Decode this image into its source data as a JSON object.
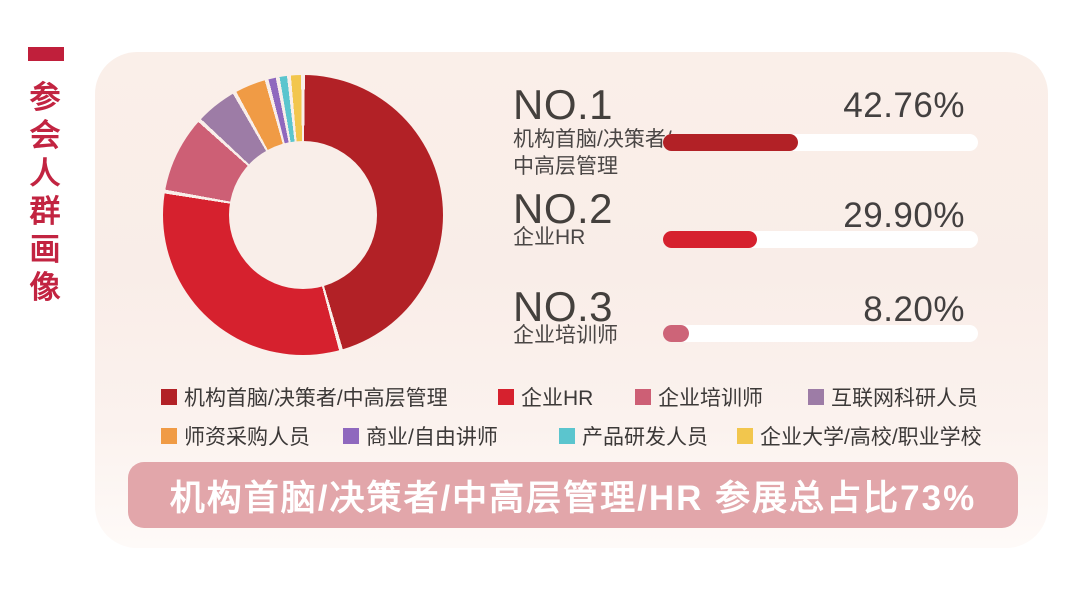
{
  "sidebar": {
    "title": "参会人群画像",
    "accent_color": "#C01F3B",
    "title_color": "#C22441"
  },
  "chart_data": {
    "type": "pie",
    "style": "donut",
    "title": "参会人群画像",
    "labels": [
      "机构首脑/决策者/中高层管理",
      "企业HR",
      "企业培训师",
      "互联网科研人员",
      "师资采购人员",
      "商业/自由讲师",
      "产品研发人员",
      "企业大学/高校/职业学校"
    ],
    "values": [
      42.76,
      29.9,
      8.2,
      4.4,
      3.3,
      0.8,
      0.8,
      1.1
    ],
    "colors": [
      "#B22126",
      "#D6212E",
      "#CD5F75",
      "#9D7CA6",
      "#F09B45",
      "#8F68BE",
      "#5BC5CE",
      "#F2C64D"
    ],
    "labeled_percentages": {
      "机构首脑/决策者/中高层管理": "42.76%",
      "企业HR": "29.90%",
      "企业培训师": "8.20%"
    },
    "unlabeled_note": "last five slice values estimated from arc angles",
    "start_angle_deg": 0,
    "direction": "clockwise",
    "hole_ratio": 0.53,
    "separator_color": "#F9EEE9",
    "legend_position": "bottom"
  },
  "rankings": [
    {
      "rank": "NO.1",
      "label_line1": "机构首脑/决策者/",
      "label_line2": "中高层管理",
      "value_text": "42.76%",
      "pct": 42.76,
      "bar_color": "#B22126",
      "track_color": "#FFFFFF"
    },
    {
      "rank": "NO.2",
      "label_line1": "企业HR",
      "label_line2": "",
      "value_text": "29.90%",
      "pct": 29.9,
      "bar_color": "#D6212E",
      "track_color": "#FFFFFF"
    },
    {
      "rank": "NO.3",
      "label_line1": "企业培训师",
      "label_line2": "",
      "value_text": "8.20%",
      "pct": 8.2,
      "bar_color": "#CD6478",
      "track_color": "#FFFFFF"
    }
  ],
  "legend": {
    "items": [
      {
        "label": "机构首脑/决策者/中高层管理",
        "color": "#B22126"
      },
      {
        "label": "企业HR",
        "color": "#D6212E"
      },
      {
        "label": "企业培训师",
        "color": "#CD5F75"
      },
      {
        "label": "互联网科研人员",
        "color": "#9D7CA6"
      },
      {
        "label": "师资采购人员",
        "color": "#F09B45"
      },
      {
        "label": "商业/自由讲师",
        "color": "#8F68BE"
      },
      {
        "label": "产品研发人员",
        "color": "#5BC5CE"
      },
      {
        "label": "企业大学/高校/职业学校",
        "color": "#F2C64D"
      }
    ]
  },
  "banner": {
    "text": "机构首脑/决策者/中高层管理/HR 参展总占比73%",
    "bg_color": "#E2A6AA",
    "text_color": "#FFFFFF"
  }
}
